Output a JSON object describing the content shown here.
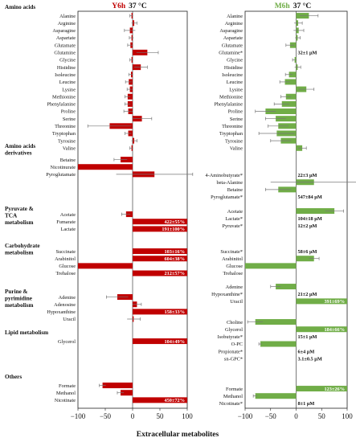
{
  "xlabel": "Extracellular metabolites",
  "xticks": [
    -100,
    -50,
    0,
    50,
    100
  ],
  "xlim": [
    -100,
    100
  ],
  "colors": {
    "Y6h": "#c00000",
    "M6h": "#70ad47",
    "errorbar": "#777777"
  },
  "chart_data": [
    {
      "type": "bar",
      "orientation": "horizontal",
      "title_name": "Y6h",
      "title_temp": "37 °C",
      "xlim": [
        -100,
        100
      ],
      "groups": [
        {
          "name": "Amino acids",
          "items": [
            {
              "label": "Alanine",
              "value": -2,
              "err": 3
            },
            {
              "label": "Arginine",
              "value": 3,
              "err": 5
            },
            {
              "label": "Asparagine",
              "value": -5,
              "err": 10
            },
            {
              "label": "Aspartate",
              "value": -2,
              "err": 4
            },
            {
              "label": "Glutamate",
              "value": -4,
              "err": 5
            },
            {
              "label": "Glutamine",
              "value": 27,
              "err": 20
            },
            {
              "label": "Glycine",
              "value": -2,
              "err": 3
            },
            {
              "label": "Histidine",
              "value": 15,
              "err": 12
            },
            {
              "label": "Isoleucine",
              "value": -3,
              "err": 4
            },
            {
              "label": "Leucine",
              "value": -7,
              "err": 6
            },
            {
              "label": "Lysine",
              "value": -5,
              "err": 5
            },
            {
              "label": "Methionine",
              "value": -9,
              "err": 5
            },
            {
              "label": "Phenylalanine",
              "value": -9,
              "err": 5
            },
            {
              "label": "Proline",
              "value": -8,
              "err": 8
            },
            {
              "label": "Serine",
              "value": 17,
              "err": 18
            },
            {
              "label": "Threonine",
              "value": -42,
              "err": 40
            },
            {
              "label": "Tryptophan",
              "value": -8,
              "err": 6
            },
            {
              "label": "Tyrosine",
              "value": 3,
              "err": 5
            },
            {
              "label": "Valine",
              "value": -2,
              "err": 3
            }
          ]
        },
        {
          "name": "Amino acids derivatives",
          "items": [
            {
              "label": "Betaine",
              "value": -22,
              "err": 12
            },
            {
              "label": "Nicotinurate",
              "value": -100,
              "err": 0
            },
            {
              "label": "Pyroglutamate",
              "value": 40,
              "err": 70
            }
          ]
        },
        {
          "name": "Pyruvate & TCA metabolism",
          "items": [
            {
              "label": "Acetate",
              "value": -12,
              "err": 8
            },
            {
              "label": "Fumarate",
              "value": 100,
              "err": 0,
              "annotation": "422±55%"
            },
            {
              "label": "Lactate",
              "value": 100,
              "err": 0,
              "annotation": "191±100%"
            }
          ]
        },
        {
          "name": "Carbohydrate metabolism",
          "items": [
            {
              "label": "Succinate",
              "value": 100,
              "err": 0,
              "annotation": "103±16%"
            },
            {
              "label": "Arabinitol",
              "value": 100,
              "err": 0,
              "annotation": "604±38%"
            },
            {
              "label": "Glucose",
              "value": -100,
              "err": 0
            },
            {
              "label": "Trehalose",
              "value": 100,
              "err": 0,
              "annotation": "212±57%"
            }
          ]
        },
        {
          "name": "Purine & pyrimidine metabolism",
          "items": [
            {
              "label": "Adenine",
              "value": -28,
              "err": 20
            },
            {
              "label": "Adenosine",
              "value": 8,
              "err": 8
            },
            {
              "label": "Hypoxanthine",
              "value": 100,
              "err": 0,
              "annotation": "158±33%"
            },
            {
              "label": "Uracil",
              "value": 2,
              "err": 12
            }
          ]
        },
        {
          "name": "Lipid metabolism",
          "items": [
            {
              "label": "Glycerol",
              "value": 100,
              "err": 0,
              "annotation": "104±49%"
            }
          ]
        },
        {
          "name": "Others",
          "items": [
            {
              "label": "Formate",
              "value": -55,
              "err": 6
            },
            {
              "label": "Methanol",
              "value": -22,
              "err": 6
            },
            {
              "label": "Nicotinate",
              "value": 100,
              "err": 0,
              "annotation": "450±72%"
            }
          ]
        }
      ]
    },
    {
      "type": "bar",
      "orientation": "horizontal",
      "title_name": "M6h",
      "title_temp": "37 °C",
      "xlim": [
        -100,
        100
      ],
      "groups": [
        {
          "name": "Amino acids",
          "items": [
            {
              "label": "Alanine",
              "value": 25,
              "err": 18
            },
            {
              "label": "Arginine",
              "value": 4,
              "err": 8
            },
            {
              "label": "Asparagine",
              "value": 5,
              "err": 10
            },
            {
              "label": "Aspartate",
              "value": 3,
              "err": 5
            },
            {
              "label": "Glutamate",
              "value": -12,
              "err": 8
            },
            {
              "label": "Glutamine*",
              "value": null,
              "conc": "32±1 μM"
            },
            {
              "label": "Glycine",
              "value": -3,
              "err": 4
            },
            {
              "label": "Histidine",
              "value": 3,
              "err": 6
            },
            {
              "label": "Isoleucine",
              "value": -14,
              "err": 7
            },
            {
              "label": "Leucine",
              "value": -22,
              "err": 10
            },
            {
              "label": "Lysine",
              "value": 20,
              "err": 15
            },
            {
              "label": "Methionine",
              "value": -20,
              "err": 10
            },
            {
              "label": "Phenylalanine",
              "value": -28,
              "err": 15
            },
            {
              "label": "Proline",
              "value": -60,
              "err": 20
            },
            {
              "label": "Serine",
              "value": -40,
              "err": 20
            },
            {
              "label": "Threonine",
              "value": -35,
              "err": 20
            },
            {
              "label": "Tryptophan",
              "value": -38,
              "err": 35
            },
            {
              "label": "Tyrosine",
              "value": -30,
              "err": 20
            },
            {
              "label": "Valine",
              "value": 12,
              "err": 8
            }
          ]
        },
        {
          "name": "Amino acids derivatives",
          "items": [
            {
              "label": "4-Aminobutyrate*",
              "value": null,
              "conc": "22±3 μM"
            },
            {
              "label": "beta-Alanine",
              "value": 35,
              "err": 85
            },
            {
              "label": "Betaine",
              "value": -35,
              "err": 25
            },
            {
              "label": "Pyroglutamate*",
              "value": null,
              "conc": "547±84 μM"
            }
          ]
        },
        {
          "name": "Pyruvate & TCA metabolism",
          "items": [
            {
              "label": "Acetate",
              "value": 75,
              "err": 18
            },
            {
              "label": "Lactate*",
              "value": null,
              "conc": "104±18 μM"
            },
            {
              "label": "Pyruvate*",
              "value": null,
              "conc": "12±2 μM"
            }
          ]
        },
        {
          "name": "Carbohydrate metabolism",
          "items": [
            {
              "label": "Succinate*",
              "value": null,
              "conc": "58±6 μM"
            },
            {
              "label": "Arabinitol",
              "value": 35,
              "err": 10
            },
            {
              "label": "Glucose",
              "value": -100,
              "err": 0
            },
            {
              "label": "Trehalose",
              "value": null
            }
          ]
        },
        {
          "name": "Purine & pyrimidine metabolism",
          "items": [
            {
              "label": "Adenine",
              "value": -40,
              "err": 10
            },
            {
              "label": "Hypoxanthine*",
              "value": null,
              "conc": "21±2 μM"
            },
            {
              "label": "Uracil",
              "value": 100,
              "err": 0,
              "annotation": "391±69%"
            }
          ]
        },
        {
          "name": "Lipid metabolism",
          "items": [
            {
              "label": "Choline",
              "value": -80,
              "err": 15
            },
            {
              "label": "Glycerol",
              "value": 100,
              "err": 0,
              "annotation": "184±66%"
            },
            {
              "label": "Isobutyrate*",
              "value": null,
              "conc": "15±1 μM"
            },
            {
              "label": "O-PC",
              "value": -70,
              "err": 3
            },
            {
              "label": "Propionate*",
              "value": null,
              "conc": "6±4 μM"
            },
            {
              "label": "sn-GPC*",
              "value": null,
              "conc": "3.1±0.5 μM"
            }
          ]
        },
        {
          "name": "Others",
          "items": [
            {
              "label": "Formate",
              "value": 100,
              "err": 0,
              "annotation": "123±26%"
            },
            {
              "label": "Methanol",
              "value": -80,
              "err": 4
            },
            {
              "label": "Nicotinate*",
              "value": null,
              "conc": "8±1 μM"
            }
          ]
        }
      ]
    }
  ]
}
